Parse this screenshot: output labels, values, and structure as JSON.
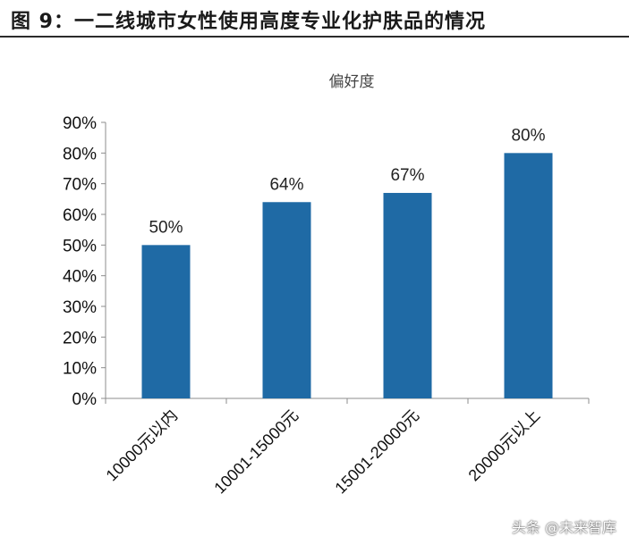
{
  "figure": {
    "title": "图 9：一二线城市女性使用高度专业化护肤品的情况"
  },
  "chart_data": {
    "type": "bar",
    "title": "偏好度",
    "xlabel": "",
    "ylabel": "",
    "categories": [
      "10000元以内",
      "10001-15000元",
      "15001-20000元",
      "20000元以上"
    ],
    "values": [
      50,
      64,
      67,
      80
    ],
    "data_labels": [
      "50%",
      "64%",
      "67%",
      "80%"
    ],
    "ylim": [
      0,
      90
    ],
    "yticks": [
      0,
      10,
      20,
      30,
      40,
      50,
      60,
      70,
      80,
      90
    ],
    "ytick_labels": [
      "0%",
      "10%",
      "20%",
      "30%",
      "40%",
      "50%",
      "60%",
      "70%",
      "80%",
      "90%"
    ],
    "grid": false,
    "legend": "none",
    "bar_color": "#1f6aa5"
  },
  "watermark": {
    "text": "头条 @未来智库"
  }
}
